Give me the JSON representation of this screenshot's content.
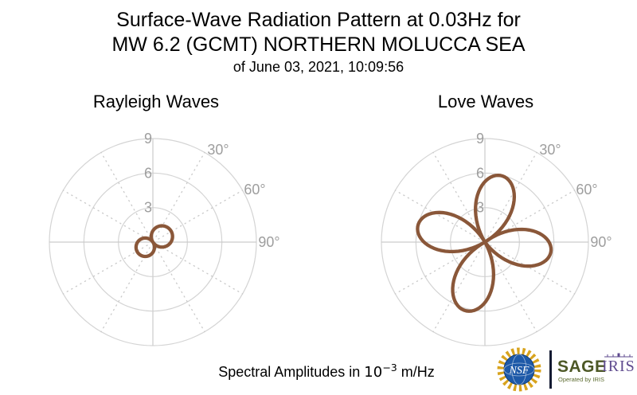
{
  "title": {
    "line1": "Surface-Wave Radiation Pattern at 0.03Hz for",
    "line2": "MW 6.2 (GCMT) NORTHERN MOLUCCA SEA",
    "subtitle": "of June 03, 2021, 10:09:56"
  },
  "footer": {
    "prefix": "Spectral Amplitudes in ",
    "power_base": "10",
    "power_exponent": "−3",
    "suffix": " m/Hz"
  },
  "colors": {
    "pattern_line": "#8a5739",
    "grid_circle": "#d4d4d4",
    "grid_cross": "#cccccc",
    "grid_dotted": "#c9c9c9",
    "axis_label": "#9e9e9e",
    "title_text": "#000000",
    "sage_green": "#4d5826",
    "iris_purple": "#5f4b8f",
    "nsf_blue": "#1d59a8",
    "nsf_gold": "#d8a31d",
    "separator_dark": "#141b33"
  },
  "chart_data": [
    {
      "type": "line",
      "projection": "polar",
      "title": "Rayleigh Waves",
      "r_axis": {
        "ticks": [
          3,
          6,
          9
        ],
        "max": 9,
        "tick_labels": [
          "3",
          "6",
          "9"
        ]
      },
      "angle_axis": {
        "ticks_deg": [
          30,
          60,
          90
        ],
        "tick_labels": [
          "30°",
          "60°",
          "90°"
        ],
        "convention": "degrees clockwise from top (azimuth from North)",
        "dotted_spokes_deg": [
          30,
          60,
          120,
          150,
          210,
          240,
          300,
          330
        ],
        "solid_spokes_deg": [
          0,
          90,
          180,
          270
        ]
      },
      "pattern_model": "r(θ) = A·cos(θ−azimuth), two-lobe dipole, |·| plotted",
      "lobe_halfwidth_deg": 90,
      "lobes": [
        {
          "azimuth_deg": 58,
          "amplitude": 1.85
        },
        {
          "azimuth_deg": 236,
          "amplitude": 1.6
        }
      ],
      "units": "10^-3 m/Hz"
    },
    {
      "type": "line",
      "projection": "polar",
      "title": "Love Waves",
      "r_axis": {
        "ticks": [
          3,
          6,
          9
        ],
        "max": 9,
        "tick_labels": [
          "3",
          "6",
          "9"
        ]
      },
      "angle_axis": {
        "ticks_deg": [
          30,
          60,
          90
        ],
        "tick_labels": [
          "30°",
          "60°",
          "90°"
        ],
        "convention": "degrees clockwise from top (azimuth from North)",
        "dotted_spokes_deg": [
          30,
          60,
          120,
          150,
          210,
          240,
          300,
          330
        ],
        "solid_spokes_deg": [
          0,
          90,
          180,
          270
        ]
      },
      "pattern_model": "r(θ) = A·cos(2(θ−azimuth)), four-lobe quadrupole, |·| plotted",
      "lobe_halfwidth_deg": 45,
      "lobes": [
        {
          "azimuth_deg": 14,
          "amplitude": 5.95
        },
        {
          "azimuth_deg": 98,
          "amplitude": 5.8
        },
        {
          "azimuth_deg": 196,
          "amplitude": 6.2
        },
        {
          "azimuth_deg": 284,
          "amplitude": 6.0
        }
      ],
      "units": "10^-3 m/Hz"
    }
  ],
  "logos": {
    "nsf_label": "NSF",
    "sage_label": "SAGE",
    "iris_label": "IRIS",
    "operated_by": "Operated by IRIS"
  }
}
